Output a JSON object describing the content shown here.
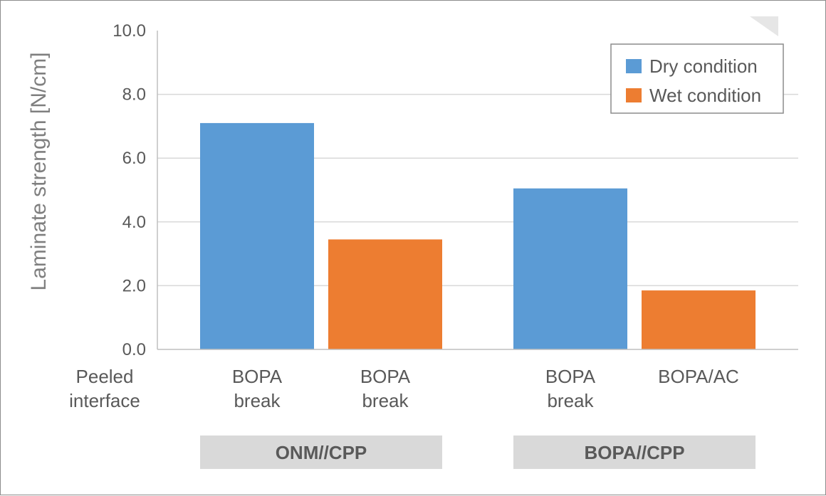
{
  "chart_data": {
    "type": "bar",
    "ylabel": "Laminate strength [N/cm]",
    "ylim": [
      0,
      10
    ],
    "yticks": [
      "0.0",
      "2.0",
      "4.0",
      "6.0",
      "8.0",
      "10.0"
    ],
    "grid": true,
    "legend_position": "top-right",
    "row_label": [
      "Peeled",
      "interface"
    ],
    "groups": [
      {
        "name": "ONM//CPP",
        "bars": [
          {
            "series": "Dry condition",
            "value": 7.1,
            "label": [
              "BOPA",
              "break"
            ]
          },
          {
            "series": "Wet condition",
            "value": 3.45,
            "label": [
              "BOPA",
              "break"
            ]
          }
        ]
      },
      {
        "name": "BOPA//CPP",
        "bars": [
          {
            "series": "Dry condition",
            "value": 5.05,
            "label": [
              "BOPA",
              "break"
            ]
          },
          {
            "series": "Wet condition",
            "value": 1.85,
            "label": [
              "BOPA/AC"
            ]
          }
        ]
      }
    ],
    "series": [
      {
        "name": "Dry condition",
        "color": "#5b9bd5"
      },
      {
        "name": "Wet condition",
        "color": "#ed7d31"
      }
    ]
  }
}
